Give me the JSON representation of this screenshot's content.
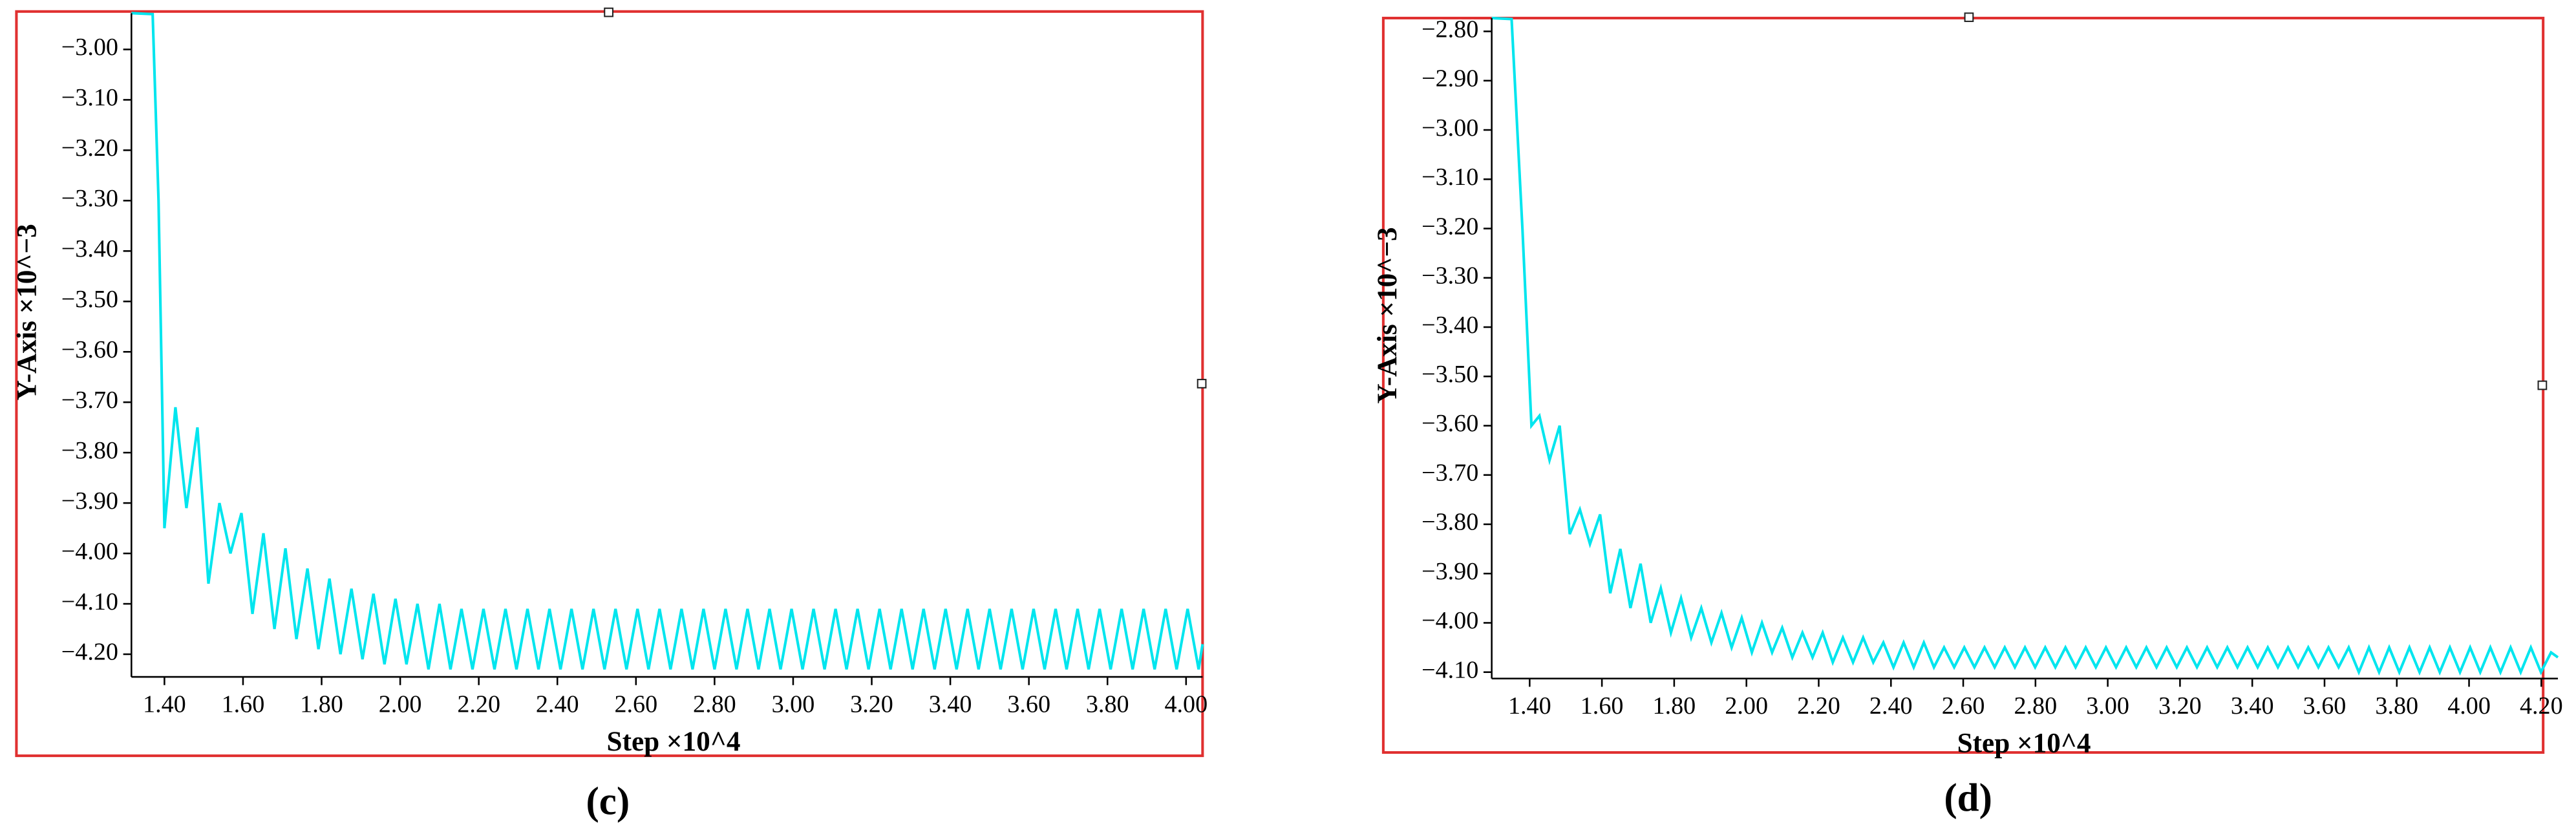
{
  "chart_data": [
    {
      "type": "line",
      "x_label": "Step ×10^4",
      "y_label": "Y-Axis ×10^−3",
      "caption": "(c)",
      "xlim": [
        1.316,
        4.042
      ],
      "ylim": [
        -4.245,
        -2.928
      ],
      "xticks": [
        {
          "value": 1.4,
          "label": "1.40"
        },
        {
          "value": 1.6,
          "label": "1.60"
        },
        {
          "value": 1.8,
          "label": "1.80"
        },
        {
          "value": 2.0,
          "label": "2.00"
        },
        {
          "value": 2.2,
          "label": "2.20"
        },
        {
          "value": 2.4,
          "label": "2.40"
        },
        {
          "value": 2.6,
          "label": "2.60"
        },
        {
          "value": 2.8,
          "label": "2.80"
        },
        {
          "value": 3.0,
          "label": "3.00"
        },
        {
          "value": 3.2,
          "label": "3.20"
        },
        {
          "value": 3.4,
          "label": "3.40"
        },
        {
          "value": 3.6,
          "label": "3.60"
        },
        {
          "value": 3.8,
          "label": "3.80"
        },
        {
          "value": 4.0,
          "label": "4.00"
        }
      ],
      "yticks": [
        {
          "value": -3.0,
          "label": "−3.00"
        },
        {
          "value": -3.1,
          "label": "−3.10"
        },
        {
          "value": -3.2,
          "label": "−3.20"
        },
        {
          "value": -3.3,
          "label": "−3.30"
        },
        {
          "value": -3.4,
          "label": "−3.40"
        },
        {
          "value": -3.5,
          "label": "−3.50"
        },
        {
          "value": -3.6,
          "label": "−3.60"
        },
        {
          "value": -3.7,
          "label": "−3.70"
        },
        {
          "value": -3.8,
          "label": "−3.80"
        },
        {
          "value": -3.9,
          "label": "−3.90"
        },
        {
          "value": -4.0,
          "label": "−4.00"
        },
        {
          "value": -4.1,
          "label": "−4.10"
        },
        {
          "value": -4.2,
          "label": "−4.20"
        }
      ],
      "x": [
        1.316,
        1.37,
        1.385,
        1.4,
        1.428,
        1.456,
        1.484,
        1.512,
        1.54,
        1.568,
        1.596,
        1.624,
        1.652,
        1.68,
        1.708,
        1.736,
        1.764,
        1.792,
        1.82,
        1.848,
        1.876,
        1.904,
        1.932,
        1.96,
        1.988,
        2.016,
        2.044,
        2.072,
        2.1,
        2.128,
        2.156,
        2.184,
        2.212,
        2.24,
        2.268,
        2.296,
        2.324,
        2.352,
        2.38,
        2.408,
        2.436,
        2.464,
        2.492,
        2.52,
        2.548,
        2.576,
        2.604,
        2.632,
        2.66,
        2.688,
        2.716,
        2.744,
        2.772,
        2.8,
        2.828,
        2.856,
        2.884,
        2.912,
        2.94,
        2.968,
        2.996,
        3.024,
        3.052,
        3.08,
        3.108,
        3.136,
        3.164,
        3.192,
        3.22,
        3.248,
        3.276,
        3.304,
        3.332,
        3.36,
        3.388,
        3.416,
        3.444,
        3.472,
        3.5,
        3.528,
        3.556,
        3.584,
        3.612,
        3.64,
        3.668,
        3.696,
        3.724,
        3.752,
        3.78,
        3.808,
        3.836,
        3.864,
        3.892,
        3.92,
        3.948,
        3.976,
        4.004,
        4.032,
        4.042
      ],
      "series": [
        {
          "color": "#00e5ee",
          "values": [
            -2.928,
            -2.93,
            -3.3,
            -3.95,
            -3.71,
            -3.91,
            -3.75,
            -4.06,
            -3.9,
            -4.0,
            -3.92,
            -4.12,
            -3.96,
            -4.15,
            -3.99,
            -4.17,
            -4.03,
            -4.19,
            -4.05,
            -4.2,
            -4.07,
            -4.21,
            -4.08,
            -4.22,
            -4.09,
            -4.22,
            -4.1,
            -4.23,
            -4.1,
            -4.23,
            -4.11,
            -4.23,
            -4.11,
            -4.23,
            -4.11,
            -4.23,
            -4.11,
            -4.23,
            -4.11,
            -4.23,
            -4.11,
            -4.23,
            -4.11,
            -4.23,
            -4.11,
            -4.23,
            -4.11,
            -4.23,
            -4.11,
            -4.23,
            -4.11,
            -4.23,
            -4.11,
            -4.23,
            -4.11,
            -4.23,
            -4.11,
            -4.23,
            -4.11,
            -4.23,
            -4.11,
            -4.23,
            -4.11,
            -4.23,
            -4.11,
            -4.23,
            -4.11,
            -4.23,
            -4.11,
            -4.23,
            -4.11,
            -4.23,
            -4.11,
            -4.23,
            -4.11,
            -4.23,
            -4.11,
            -4.23,
            -4.11,
            -4.23,
            -4.11,
            -4.23,
            -4.11,
            -4.23,
            -4.11,
            -4.23,
            -4.11,
            -4.23,
            -4.11,
            -4.23,
            -4.11,
            -4.23,
            -4.11,
            -4.23,
            -4.11,
            -4.23,
            -4.11,
            -4.23,
            -4.18
          ]
        }
      ]
    },
    {
      "type": "line",
      "x_label": "Step ×10^4",
      "y_label": "Y-Axis ×10^−3",
      "caption": "(d)",
      "xlim": [
        1.295,
        4.246
      ],
      "ylim": [
        -4.113,
        -2.773
      ],
      "xticks": [
        {
          "value": 1.4,
          "label": "1.40"
        },
        {
          "value": 1.6,
          "label": "1.60"
        },
        {
          "value": 1.8,
          "label": "1.80"
        },
        {
          "value": 2.0,
          "label": "2.00"
        },
        {
          "value": 2.2,
          "label": "2.20"
        },
        {
          "value": 2.4,
          "label": "2.40"
        },
        {
          "value": 2.6,
          "label": "2.60"
        },
        {
          "value": 2.8,
          "label": "2.80"
        },
        {
          "value": 3.0,
          "label": "3.00"
        },
        {
          "value": 3.2,
          "label": "3.20"
        },
        {
          "value": 3.4,
          "label": "3.40"
        },
        {
          "value": 3.6,
          "label": "3.60"
        },
        {
          "value": 3.8,
          "label": "3.80"
        },
        {
          "value": 4.0,
          "label": "4.00"
        },
        {
          "value": 4.2,
          "label": "4.20"
        }
      ],
      "yticks": [
        {
          "value": -2.8,
          "label": "−2.80"
        },
        {
          "value": -2.9,
          "label": "−2.90"
        },
        {
          "value": -3.0,
          "label": "−3.00"
        },
        {
          "value": -3.1,
          "label": "−3.10"
        },
        {
          "value": -3.2,
          "label": "−3.20"
        },
        {
          "value": -3.3,
          "label": "−3.30"
        },
        {
          "value": -3.4,
          "label": "−3.40"
        },
        {
          "value": -3.5,
          "label": "−3.50"
        },
        {
          "value": -3.6,
          "label": "−3.60"
        },
        {
          "value": -3.7,
          "label": "−3.70"
        },
        {
          "value": -3.8,
          "label": "−3.80"
        },
        {
          "value": -3.9,
          "label": "−3.90"
        },
        {
          "value": -4.0,
          "label": "−4.00"
        },
        {
          "value": -4.1,
          "label": "−4.10"
        }
      ],
      "x": [
        1.295,
        1.35,
        1.38,
        1.405,
        1.427,
        1.455,
        1.483,
        1.511,
        1.539,
        1.567,
        1.595,
        1.623,
        1.651,
        1.679,
        1.707,
        1.735,
        1.763,
        1.791,
        1.819,
        1.847,
        1.875,
        1.903,
        1.931,
        1.959,
        1.987,
        2.015,
        2.043,
        2.071,
        2.099,
        2.127,
        2.155,
        2.183,
        2.211,
        2.239,
        2.267,
        2.295,
        2.323,
        2.351,
        2.379,
        2.407,
        2.435,
        2.463,
        2.491,
        2.519,
        2.547,
        2.575,
        2.603,
        2.631,
        2.659,
        2.687,
        2.715,
        2.743,
        2.771,
        2.799,
        2.827,
        2.855,
        2.883,
        2.911,
        2.939,
        2.967,
        2.995,
        3.023,
        3.051,
        3.079,
        3.107,
        3.135,
        3.163,
        3.191,
        3.219,
        3.247,
        3.275,
        3.303,
        3.331,
        3.359,
        3.387,
        3.415,
        3.443,
        3.471,
        3.499,
        3.527,
        3.555,
        3.583,
        3.611,
        3.639,
        3.667,
        3.695,
        3.723,
        3.751,
        3.779,
        3.807,
        3.835,
        3.863,
        3.891,
        3.919,
        3.947,
        3.975,
        4.003,
        4.031,
        4.059,
        4.087,
        4.115,
        4.143,
        4.171,
        4.199,
        4.227,
        4.246
      ],
      "series": [
        {
          "color": "#00e5ee",
          "values": [
            -2.773,
            -2.775,
            -3.2,
            -3.6,
            -3.58,
            -3.67,
            -3.6,
            -3.82,
            -3.77,
            -3.84,
            -3.78,
            -3.94,
            -3.85,
            -3.97,
            -3.88,
            -4.0,
            -3.93,
            -4.02,
            -3.95,
            -4.03,
            -3.97,
            -4.04,
            -3.98,
            -4.05,
            -3.99,
            -4.06,
            -4.0,
            -4.06,
            -4.01,
            -4.07,
            -4.02,
            -4.07,
            -4.02,
            -4.08,
            -4.03,
            -4.08,
            -4.03,
            -4.08,
            -4.04,
            -4.09,
            -4.04,
            -4.09,
            -4.04,
            -4.09,
            -4.05,
            -4.09,
            -4.05,
            -4.09,
            -4.05,
            -4.09,
            -4.05,
            -4.09,
            -4.05,
            -4.09,
            -4.05,
            -4.09,
            -4.05,
            -4.09,
            -4.05,
            -4.09,
            -4.05,
            -4.09,
            -4.05,
            -4.09,
            -4.05,
            -4.09,
            -4.05,
            -4.09,
            -4.05,
            -4.09,
            -4.05,
            -4.09,
            -4.05,
            -4.09,
            -4.05,
            -4.09,
            -4.05,
            -4.09,
            -4.05,
            -4.09,
            -4.05,
            -4.09,
            -4.05,
            -4.09,
            -4.05,
            -4.1,
            -4.05,
            -4.1,
            -4.05,
            -4.1,
            -4.05,
            -4.1,
            -4.05,
            -4.1,
            -4.05,
            -4.1,
            -4.05,
            -4.1,
            -4.05,
            -4.1,
            -4.05,
            -4.1,
            -4.05,
            -4.1,
            -4.06,
            -4.07
          ]
        }
      ]
    }
  ]
}
